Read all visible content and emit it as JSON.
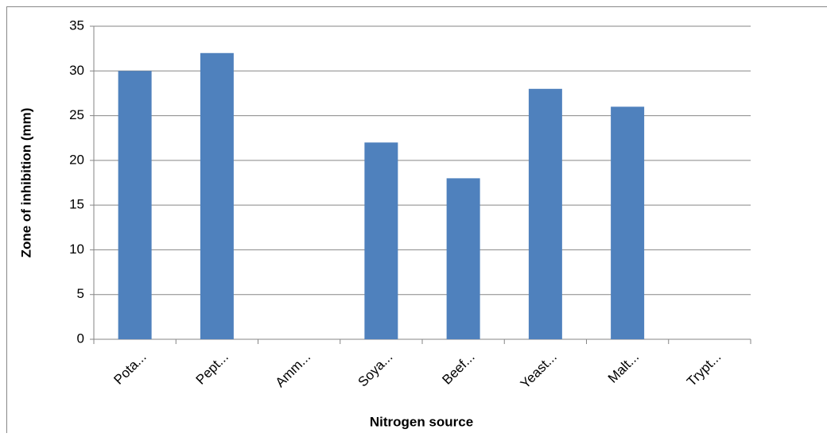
{
  "chart_data": {
    "type": "bar",
    "xlabel": "Nitrogen source",
    "ylabel": "Zone of inhibition (mm)",
    "categories": [
      "Pota...",
      "Pept...",
      "Amm...",
      "Soya...",
      "Beef...",
      "Yeast...",
      "Malt...",
      "Trypt..."
    ],
    "values": [
      30,
      32,
      0,
      22,
      18,
      28,
      26,
      0
    ],
    "color": "#4f81bd",
    "ylim": [
      0,
      35
    ],
    "yticks": [
      0,
      5,
      10,
      15,
      20,
      25,
      30,
      35
    ],
    "grid": true
  }
}
